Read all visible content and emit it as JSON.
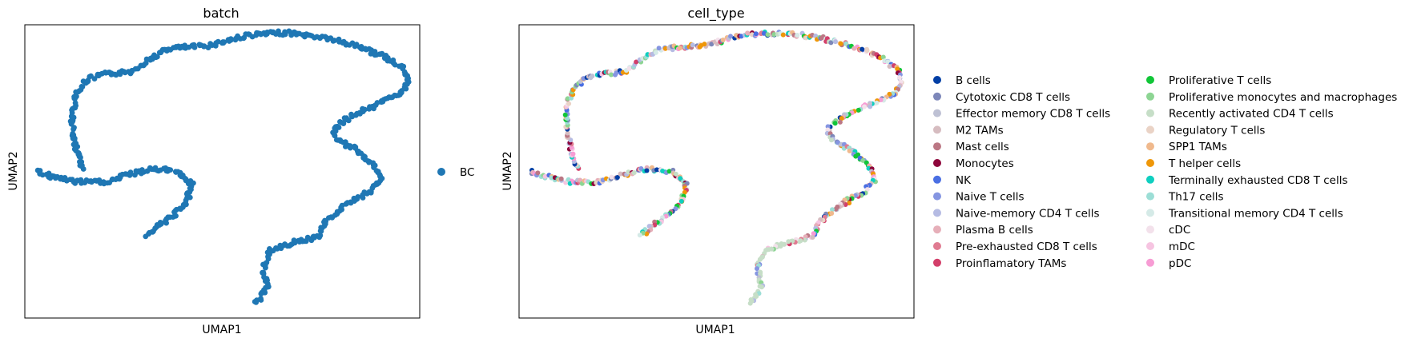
{
  "chart_data": [
    {
      "type": "scatter",
      "title": "batch",
      "xlabel": "UMAP1",
      "ylabel": "UMAP2",
      "xticks": "none",
      "yticks": "none",
      "grid": false,
      "legend_position": "right",
      "legend": [
        {
          "name": "BC",
          "color": "#1f77b4"
        }
      ],
      "approx_path_points": [
        [
          1.8,
          9.8
        ],
        [
          1.6,
          10.6
        ],
        [
          1.5,
          11.8
        ],
        [
          1.6,
          12.6
        ],
        [
          1.9,
          13.2
        ],
        [
          2.3,
          13.4
        ],
        [
          3.0,
          13.5
        ],
        [
          3.5,
          14.0
        ],
        [
          4.0,
          14.4
        ],
        [
          5.0,
          14.5
        ],
        [
          6.0,
          14.9
        ],
        [
          7.0,
          15.0
        ],
        [
          8.0,
          14.8
        ],
        [
          9.0,
          14.4
        ],
        [
          9.6,
          14.0
        ],
        [
          10.0,
          13.6
        ],
        [
          10.1,
          13.1
        ],
        [
          9.9,
          12.7
        ],
        [
          9.4,
          12.3
        ],
        [
          8.6,
          11.8
        ],
        [
          8.2,
          11.3
        ],
        [
          8.3,
          10.9
        ],
        [
          8.8,
          10.5
        ],
        [
          9.2,
          10.0
        ],
        [
          9.4,
          9.4
        ],
        [
          9.1,
          8.9
        ],
        [
          8.5,
          8.4
        ],
        [
          8.0,
          7.8
        ],
        [
          7.8,
          7.2
        ],
        [
          7.2,
          7.0
        ],
        [
          6.6,
          6.7
        ],
        [
          6.4,
          6.1
        ],
        [
          6.5,
          5.3
        ],
        [
          6.2,
          4.6
        ],
        [
          0.6,
          9.7
        ],
        [
          1.0,
          9.5
        ],
        [
          1.6,
          9.3
        ],
        [
          2.4,
          9.3
        ],
        [
          3.0,
          9.6
        ],
        [
          3.6,
          9.8
        ],
        [
          4.2,
          9.7
        ],
        [
          4.6,
          9.2
        ],
        [
          4.4,
          8.4
        ],
        [
          3.8,
          7.7
        ],
        [
          3.4,
          7.2
        ]
      ]
    },
    {
      "type": "scatter",
      "title": "cell_type",
      "xlabel": "UMAP1",
      "ylabel": "UMAP2",
      "xticks": "none",
      "yticks": "none",
      "grid": false,
      "legend_position": "right",
      "legend": [
        {
          "name": "B cells",
          "color": "#023fa5"
        },
        {
          "name": "Cytotoxic CD8 T cells",
          "color": "#7d87b9"
        },
        {
          "name": "Effector memory CD8 T cells",
          "color": "#bec1d4"
        },
        {
          "name": "M2 TAMs",
          "color": "#d6bcc0"
        },
        {
          "name": "Mast cells",
          "color": "#bb7784"
        },
        {
          "name": "Monocytes",
          "color": "#8e063b"
        },
        {
          "name": "NK",
          "color": "#4a6fe3"
        },
        {
          "name": "Naive T cells",
          "color": "#8595e1"
        },
        {
          "name": "Naive-memory CD4 T cells",
          "color": "#b5bbe3"
        },
        {
          "name": "Plasma B cells",
          "color": "#e6afb9"
        },
        {
          "name": "Pre-exhausted CD8 T cells",
          "color": "#e07b91"
        },
        {
          "name": "Proinflamatory TAMs",
          "color": "#d33f6a"
        },
        {
          "name": "Proliferative T cells",
          "color": "#11c638"
        },
        {
          "name": "Proliferative monocytes and macrophages",
          "color": "#8dd593"
        },
        {
          "name": "Recently activated CD4 T cells",
          "color": "#c6dec7"
        },
        {
          "name": "Regulatory T cells",
          "color": "#ead3c6"
        },
        {
          "name": "SPP1 TAMs",
          "color": "#f0b98d"
        },
        {
          "name": "T helper cells",
          "color": "#ef9708"
        },
        {
          "name": "Terminally exhausted CD8 T cells",
          "color": "#0fcfc0"
        },
        {
          "name": "Th17 cells",
          "color": "#9cded6"
        },
        {
          "name": "Transitional memory CD4 T cells",
          "color": "#d5eae7"
        },
        {
          "name": "cDC",
          "color": "#f3e1eb"
        },
        {
          "name": "mDC",
          "color": "#f6c4e1"
        },
        {
          "name": "pDC",
          "color": "#f79cd4"
        }
      ],
      "approx_path_points": [
        [
          1.8,
          9.8
        ],
        [
          1.6,
          10.6
        ],
        [
          1.5,
          11.8
        ],
        [
          1.6,
          12.6
        ],
        [
          1.9,
          13.2
        ],
        [
          2.3,
          13.4
        ],
        [
          3.0,
          13.5
        ],
        [
          3.5,
          14.0
        ],
        [
          4.0,
          14.4
        ],
        [
          5.0,
          14.5
        ],
        [
          6.0,
          14.9
        ],
        [
          7.0,
          15.0
        ],
        [
          8.0,
          14.8
        ],
        [
          9.0,
          14.4
        ],
        [
          9.6,
          14.0
        ],
        [
          10.0,
          13.6
        ],
        [
          10.1,
          13.1
        ],
        [
          9.9,
          12.7
        ],
        [
          9.4,
          12.3
        ],
        [
          8.6,
          11.8
        ],
        [
          8.2,
          11.3
        ],
        [
          8.3,
          10.9
        ],
        [
          8.8,
          10.5
        ],
        [
          9.2,
          10.0
        ],
        [
          9.4,
          9.4
        ],
        [
          9.1,
          8.9
        ],
        [
          8.5,
          8.4
        ],
        [
          8.0,
          7.8
        ],
        [
          7.8,
          7.2
        ],
        [
          7.2,
          7.0
        ],
        [
          6.6,
          6.7
        ],
        [
          6.4,
          6.1
        ],
        [
          6.5,
          5.3
        ],
        [
          6.2,
          4.6
        ],
        [
          0.6,
          9.7
        ],
        [
          1.0,
          9.5
        ],
        [
          1.6,
          9.3
        ],
        [
          2.4,
          9.3
        ],
        [
          3.0,
          9.6
        ],
        [
          3.6,
          9.8
        ],
        [
          4.2,
          9.7
        ],
        [
          4.6,
          9.2
        ],
        [
          4.4,
          8.4
        ],
        [
          3.8,
          7.7
        ],
        [
          3.4,
          7.2
        ]
      ],
      "x_range": [
        0.3,
        10.4
      ],
      "y_range": [
        4.1,
        15.3
      ]
    }
  ]
}
